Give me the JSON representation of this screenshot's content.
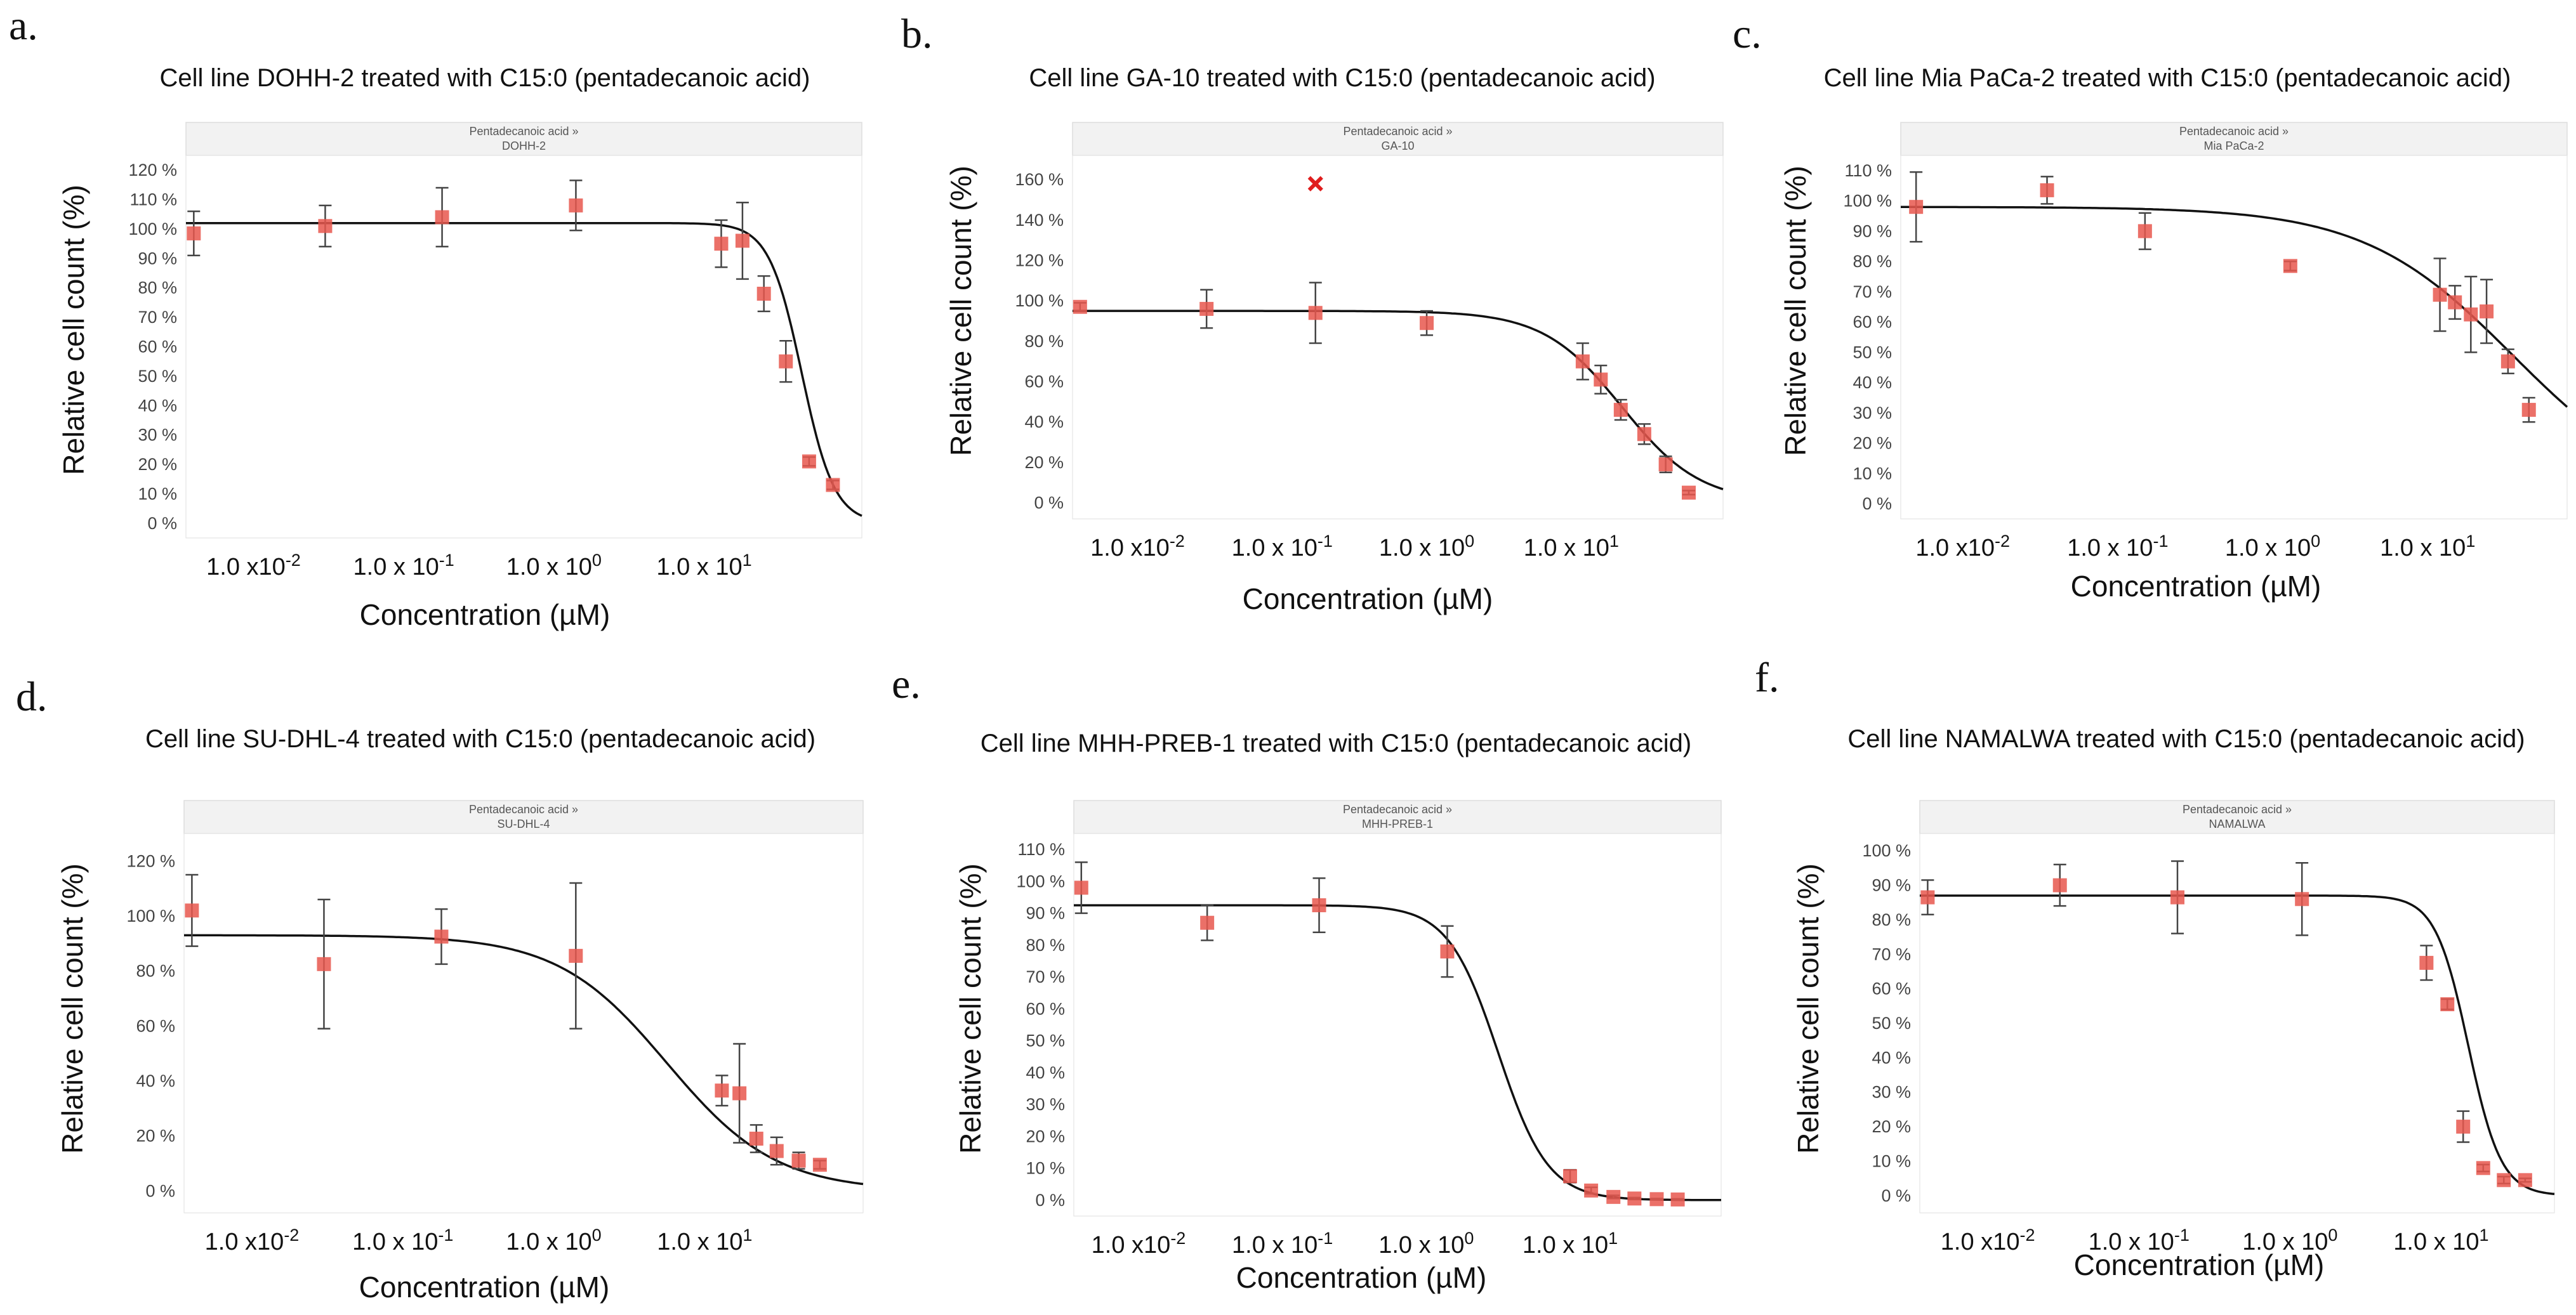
{
  "chart_data": [
    {
      "type": "scatter",
      "letter": "a.",
      "title": "Cell line DOHH-2 treated with C15:0 (pentadecanoic acid)",
      "strip": [
        "Pentadecanoic acid »",
        "DOHH-2"
      ],
      "xlabel": "Concentration (µM)",
      "ylabel": "Relative cell count (%)",
      "xlim_log10": [
        -2.45,
        2.05
      ],
      "ylim": [
        -5,
        125
      ],
      "y_ticks": [
        0,
        10,
        20,
        30,
        40,
        50,
        60,
        70,
        80,
        90,
        100,
        110,
        120
      ],
      "y_tick_suffix": " %",
      "x_ticks": [
        {
          "log10": -2,
          "base": "1.0 x10",
          "exp": "-2"
        },
        {
          "log10": -1,
          "base": "1.0 x 10",
          "exp": "-1"
        },
        {
          "log10": 0,
          "base": "1.0 x 10",
          "exp": "0"
        },
        {
          "log10": 1,
          "base": "1.0 x 10",
          "exp": "1"
        }
      ],
      "fit": {
        "top": 102,
        "bottom": 0,
        "log_ec50": 1.65,
        "hill": 4.0
      },
      "points": [
        {
          "x": 0.004,
          "y": 98.5,
          "err": 7.5
        },
        {
          "x": 0.03,
          "y": 101,
          "err": 7
        },
        {
          "x": 0.18,
          "y": 104,
          "err": 10
        },
        {
          "x": 1.4,
          "y": 108,
          "err": 8.5
        },
        {
          "x": 13,
          "y": 95,
          "err": 8
        },
        {
          "x": 18,
          "y": 96,
          "err": 13
        },
        {
          "x": 25,
          "y": 78,
          "err": 6
        },
        {
          "x": 35,
          "y": 55,
          "err": 7
        },
        {
          "x": 50,
          "y": 21,
          "err": 1.5
        },
        {
          "x": 72,
          "y": 13,
          "err": 1.5
        }
      ]
    },
    {
      "type": "scatter",
      "letter": "b.",
      "title": "Cell line GA-10 treated with C15:0 (pentadecanoic acid)",
      "strip": [
        "Pentadecanoic acid »",
        "GA-10"
      ],
      "xlabel": "Concentration (µM)",
      "ylabel": "Relative cell count (%)",
      "xlim_log10": [
        -2.45,
        2.05
      ],
      "ylim": [
        -8,
        172
      ],
      "y_ticks": [
        0,
        20,
        40,
        60,
        80,
        100,
        120,
        140,
        160
      ],
      "y_tick_suffix": " %",
      "x_ticks": [
        {
          "log10": -2,
          "base": "1.0 x10",
          "exp": "-2"
        },
        {
          "log10": -1,
          "base": "1.0 x 10",
          "exp": "-1"
        },
        {
          "log10": 0,
          "base": "1.0 x 10",
          "exp": "0"
        },
        {
          "log10": 1,
          "base": "1.0 x 10",
          "exp": "1"
        }
      ],
      "fit": {
        "top": 95,
        "bottom": 0,
        "log_ec50": 1.35,
        "hill": 1.6
      },
      "outliers": [
        {
          "x": 0.17,
          "y": 158
        }
      ],
      "points": [
        {
          "x": 0.004,
          "y": 97,
          "err": 2
        },
        {
          "x": 0.03,
          "y": 96,
          "err": 9.5
        },
        {
          "x": 0.17,
          "y": 94,
          "err": 15
        },
        {
          "x": 1.0,
          "y": 89,
          "err": 6
        },
        {
          "x": 12,
          "y": 70,
          "err": 9
        },
        {
          "x": 16,
          "y": 61,
          "err": 7
        },
        {
          "x": 22,
          "y": 46,
          "err": 5
        },
        {
          "x": 32,
          "y": 34,
          "err": 5
        },
        {
          "x": 45,
          "y": 19,
          "err": 4
        },
        {
          "x": 65,
          "y": 5,
          "err": 1
        }
      ]
    },
    {
      "type": "scatter",
      "letter": "c.",
      "title": "Cell line Mia PaCa-2 treated with C15:0 (pentadecanoic acid)",
      "strip": [
        "Pentadecanoic acid »",
        "Mia PaCa-2"
      ],
      "xlabel": "Concentration (µM)",
      "ylabel": "Relative cell count (%)",
      "xlim_log10": [
        -2.4,
        1.9
      ],
      "ylim": [
        -5,
        115
      ],
      "y_ticks": [
        0,
        10,
        20,
        30,
        40,
        50,
        60,
        70,
        80,
        90,
        100,
        110
      ],
      "y_tick_suffix": " %",
      "x_ticks": [
        {
          "log10": -2,
          "base": "1.0 x10",
          "exp": "-2"
        },
        {
          "log10": -1,
          "base": "1.0 x 10",
          "exp": "-1"
        },
        {
          "log10": 0,
          "base": "1.0 x 10",
          "exp": "0"
        },
        {
          "log10": 1,
          "base": "1.0 x 10",
          "exp": "1"
        }
      ],
      "fit": {
        "top": 98,
        "bottom": 0,
        "log_ec50": 1.55,
        "hill": 0.9
      },
      "points": [
        {
          "x": 0.005,
          "y": 98,
          "err": 11.5
        },
        {
          "x": 0.035,
          "y": 103.5,
          "err": 4.5
        },
        {
          "x": 0.15,
          "y": 90,
          "err": 6
        },
        {
          "x": 1.3,
          "y": 78.5,
          "err": 1.5
        },
        {
          "x": 12,
          "y": 69,
          "err": 12
        },
        {
          "x": 15,
          "y": 66.5,
          "err": 5.5
        },
        {
          "x": 19,
          "y": 62.5,
          "err": 12.5
        },
        {
          "x": 24,
          "y": 63.5,
          "err": 10.5
        },
        {
          "x": 33,
          "y": 47,
          "err": 4
        },
        {
          "x": 45,
          "y": 31,
          "err": 4
        }
      ]
    },
    {
      "type": "scatter",
      "letter": "d.",
      "title": "Cell line SU-DHL-4 treated with C15:0 (pentadecanoic acid)",
      "strip": [
        "Pentadecanoic acid »",
        "SU-DHL-4"
      ],
      "xlabel": "Concentration (µM)",
      "ylabel": "Relative cell count (%)",
      "xlim_log10": [
        -2.45,
        2.05
      ],
      "ylim": [
        -8,
        130
      ],
      "y_ticks": [
        0,
        20,
        40,
        60,
        80,
        100,
        120
      ],
      "y_tick_suffix": " %",
      "x_ticks": [
        {
          "log10": -2,
          "base": "1.0 x10",
          "exp": "-2"
        },
        {
          "log10": -1,
          "base": "1.0 x 10",
          "exp": "-1"
        },
        {
          "log10": 0,
          "base": "1.0 x 10",
          "exp": "0"
        },
        {
          "log10": 1,
          "base": "1.0 x 10",
          "exp": "1"
        }
      ],
      "fit": {
        "top": 93,
        "bottom": 0,
        "log_ec50": 0.75,
        "hill": 1.2
      },
      "points": [
        {
          "x": 0.004,
          "y": 102,
          "err": 13
        },
        {
          "x": 0.03,
          "y": 82.5,
          "err": 23.5
        },
        {
          "x": 0.18,
          "y": 92.5,
          "err": 10
        },
        {
          "x": 1.4,
          "y": 85.5,
          "err": 26.5
        },
        {
          "x": 13,
          "y": 36.5,
          "err": 5.5
        },
        {
          "x": 17,
          "y": 35.5,
          "err": 18
        },
        {
          "x": 22,
          "y": 19,
          "err": 5
        },
        {
          "x": 30,
          "y": 14.5,
          "err": 5
        },
        {
          "x": 42,
          "y": 11,
          "err": 3
        },
        {
          "x": 58,
          "y": 9.5,
          "err": 1.5
        }
      ]
    },
    {
      "type": "scatter",
      "letter": "e.",
      "title": "Cell line MHH-PREB-1 treated with C15:0 (pentadecanoic acid)",
      "strip": [
        "Pentadecanoic acid »",
        "MHH-PREB-1"
      ],
      "xlabel": "Concentration (µM)",
      "ylabel": "Relative cell count (%)",
      "xlim_log10": [
        -2.45,
        2.05
      ],
      "ylim": [
        -5,
        115
      ],
      "y_ticks": [
        0,
        10,
        20,
        30,
        40,
        50,
        60,
        70,
        80,
        90,
        100,
        110
      ],
      "y_tick_suffix": " %",
      "x_ticks": [
        {
          "log10": -2,
          "base": "1.0 x10",
          "exp": "-2"
        },
        {
          "log10": -1,
          "base": "1.0 x 10",
          "exp": "-1"
        },
        {
          "log10": 0,
          "base": "1.0 x 10",
          "exp": "0"
        },
        {
          "log10": 1,
          "base": "1.0 x 10",
          "exp": "1"
        }
      ],
      "fit": {
        "top": 92.5,
        "bottom": 0,
        "log_ec50": 0.5,
        "hill": 2.5
      },
      "points": [
        {
          "x": 0.004,
          "y": 98,
          "err": 8
        },
        {
          "x": 0.03,
          "y": 87,
          "err": 5.5
        },
        {
          "x": 0.18,
          "y": 92.5,
          "err": 8.5
        },
        {
          "x": 1.4,
          "y": 78,
          "err": 8
        },
        {
          "x": 10,
          "y": 7.5,
          "err": 2
        },
        {
          "x": 14,
          "y": 3,
          "err": 1
        },
        {
          "x": 20,
          "y": 1,
          "err": 0.5
        },
        {
          "x": 28,
          "y": 0.5,
          "err": 0.3
        },
        {
          "x": 40,
          "y": 0.3,
          "err": 0.2
        },
        {
          "x": 56,
          "y": 0.2,
          "err": 0.2
        }
      ]
    },
    {
      "type": "scatter",
      "letter": "f.",
      "title": "Cell line NAMALWA treated with C15:0 (pentadecanoic acid)",
      "strip": [
        "Pentadecanoic acid »",
        "NAMALWA"
      ],
      "xlabel": "Concentration (µM)",
      "ylabel": "Relative cell count (%)",
      "xlim_log10": [
        -2.45,
        1.75
      ],
      "ylim": [
        -5,
        105
      ],
      "y_ticks": [
        0,
        10,
        20,
        30,
        40,
        50,
        60,
        70,
        80,
        90,
        100
      ],
      "y_tick_suffix": " %",
      "x_ticks": [
        {
          "log10": -2,
          "base": "1.0 x10",
          "exp": "-2"
        },
        {
          "log10": -1,
          "base": "1.0 x 10",
          "exp": "-1"
        },
        {
          "log10": 0,
          "base": "1.0 x 10",
          "exp": "0"
        },
        {
          "log10": 1,
          "base": "1.0 x 10",
          "exp": "1"
        }
      ],
      "fit": {
        "top": 87,
        "bottom": 0,
        "log_ec50": 1.18,
        "hill": 4.0
      },
      "points": [
        {
          "x": 0.004,
          "y": 86.5,
          "err": 5
        },
        {
          "x": 0.03,
          "y": 90,
          "err": 6
        },
        {
          "x": 0.18,
          "y": 86.5,
          "err": 10.5
        },
        {
          "x": 1.2,
          "y": 86,
          "err": 10.5
        },
        {
          "x": 8,
          "y": 67.5,
          "err": 5
        },
        {
          "x": 11,
          "y": 55.5,
          "err": 1.5
        },
        {
          "x": 14,
          "y": 20,
          "err": 4.5
        },
        {
          "x": 19,
          "y": 8,
          "err": 1
        },
        {
          "x": 26,
          "y": 4.5,
          "err": 1
        },
        {
          "x": 36,
          "y": 4.5,
          "err": 0.5
        }
      ]
    }
  ]
}
